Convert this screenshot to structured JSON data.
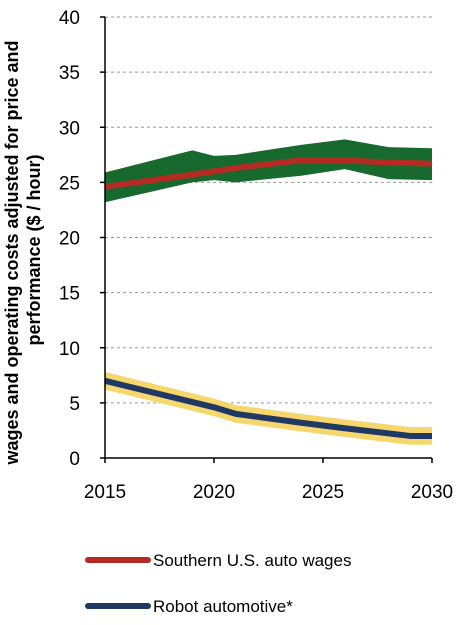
{
  "chart_data": {
    "type": "line",
    "title": "",
    "xlabel": "",
    "ylabel": "wages and operating costs adjusted for price and performance ($ / hour)",
    "xlim": [
      2015,
      2030
    ],
    "ylim": [
      0,
      40
    ],
    "x_ticks": [
      2015,
      2020,
      2025,
      2030
    ],
    "y_ticks": [
      0,
      5,
      10,
      15,
      20,
      25,
      30,
      35,
      40
    ],
    "grid": "horizontal dashed",
    "legend_position": "bottom",
    "series": [
      {
        "name": "Southern U.S. auto wages",
        "line_color": "#b32b22",
        "band_color": "#17692e",
        "x": [
          2015,
          2019,
          2020,
          2021,
          2024,
          2026,
          2028,
          2030
        ],
        "values": [
          24.6,
          25.7,
          26.0,
          26.3,
          27.0,
          27.0,
          26.8,
          26.7
        ],
        "lower": [
          23.2,
          25.0,
          25.2,
          25.0,
          25.6,
          26.2,
          25.3,
          25.2
        ],
        "upper": [
          25.9,
          27.9,
          27.4,
          27.5,
          28.4,
          28.9,
          28.2,
          28.1
        ]
      },
      {
        "name": "Robot automotive*",
        "line_color": "#1f3864",
        "band_color": "#f5d76e",
        "x": [
          2015,
          2020,
          2021,
          2024,
          2026,
          2029,
          2030
        ],
        "values": [
          7.0,
          4.6,
          4.0,
          3.2,
          2.7,
          2.0,
          2.0
        ],
        "lower": [
          6.2,
          3.8,
          3.2,
          2.4,
          1.9,
          1.2,
          1.2
        ],
        "upper": [
          7.8,
          5.4,
          4.8,
          4.0,
          3.5,
          2.8,
          2.8
        ]
      }
    ]
  }
}
